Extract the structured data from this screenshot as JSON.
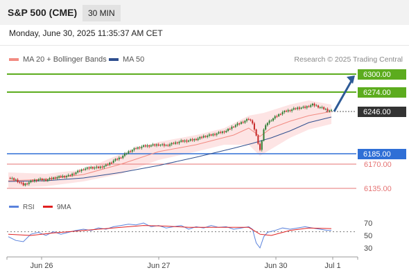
{
  "header": {
    "title": "S&P 500 (CME)",
    "timeframe": "30 MIN"
  },
  "date_label": "Monday, June 30, 2025 11:35:37 AM CET",
  "legend": {
    "items": [
      {
        "label": "MA 20 + Bollinger Bands",
        "color": "#f28b82"
      },
      {
        "label": "MA 50",
        "color": "#2f4f8f"
      }
    ],
    "credit": "Research © 2025 Trading Central"
  },
  "colors": {
    "resistance": "#5cac1e",
    "pivot": "#2f6fd6",
    "support": "#e57373",
    "current": "#333333",
    "candle_up": "#2e7d32",
    "candle_down": "#c62828",
    "arrow": "#2d5a96",
    "band_fill": "#fde4e4",
    "rsi_line": "#5a82dc",
    "rsi_ma": "#e02020"
  },
  "chart_data": [
    {
      "type": "candlestick",
      "title": "S&P 500 (CME)",
      "timeframe": "30 MIN",
      "x_tick_labels": [
        "Jun 26",
        "Jun 27",
        "Jun 30",
        "Jul 1"
      ],
      "ylim": [
        6120,
        6310
      ],
      "levels": [
        {
          "value": 6300.0,
          "label": "6300.00",
          "kind": "resistance"
        },
        {
          "value": 6274.0,
          "label": "6274.00",
          "kind": "resistance"
        },
        {
          "value": 6246.0,
          "label": "6246.00",
          "kind": "current"
        },
        {
          "value": 6185.0,
          "label": "6185.00",
          "kind": "pivot"
        },
        {
          "value": 6170.0,
          "label": "6170.00",
          "kind": "support"
        },
        {
          "value": 6135.0,
          "label": "6135.00",
          "kind": "support"
        }
      ],
      "forecast_arrow": {
        "from": 6246,
        "to": 6298
      },
      "price_path": [
        [
          0,
          6150
        ],
        [
          4,
          6147
        ],
        [
          8,
          6140
        ],
        [
          12,
          6145
        ],
        [
          16,
          6148
        ],
        [
          20,
          6147
        ],
        [
          24,
          6150
        ],
        [
          28,
          6152
        ],
        [
          32,
          6153
        ],
        [
          36,
          6158
        ],
        [
          40,
          6163
        ],
        [
          44,
          6165
        ],
        [
          48,
          6165
        ],
        [
          52,
          6168
        ],
        [
          56,
          6175
        ],
        [
          60,
          6180
        ],
        [
          64,
          6188
        ],
        [
          68,
          6193
        ],
        [
          72,
          6196
        ],
        [
          76,
          6197
        ],
        [
          80,
          6198
        ],
        [
          84,
          6197
        ],
        [
          88,
          6200
        ],
        [
          92,
          6203
        ],
        [
          96,
          6204
        ],
        [
          100,
          6206
        ],
        [
          104,
          6210
        ],
        [
          108,
          6212
        ],
        [
          112,
          6215
        ],
        [
          116,
          6218
        ],
        [
          120,
          6225
        ],
        [
          124,
          6230
        ],
        [
          128,
          6235
        ],
        [
          130,
          6230
        ],
        [
          132,
          6210
        ],
        [
          134,
          6190
        ],
        [
          136,
          6220
        ],
        [
          138,
          6230
        ],
        [
          142,
          6238
        ],
        [
          146,
          6245
        ],
        [
          150,
          6248
        ],
        [
          154,
          6251
        ],
        [
          158,
          6252
        ],
        [
          162,
          6256
        ],
        [
          166,
          6252
        ],
        [
          170,
          6248
        ],
        [
          172,
          6247
        ]
      ],
      "ma20": [
        [
          0,
          6146
        ],
        [
          20,
          6148
        ],
        [
          40,
          6155
        ],
        [
          60,
          6170
        ],
        [
          80,
          6188
        ],
        [
          100,
          6198
        ],
        [
          120,
          6212
        ],
        [
          128,
          6222
        ],
        [
          134,
          6210
        ],
        [
          140,
          6222
        ],
        [
          150,
          6232
        ],
        [
          160,
          6240
        ],
        [
          172,
          6246
        ]
      ],
      "ma50": [
        [
          0,
          6145
        ],
        [
          20,
          6146
        ],
        [
          40,
          6150
        ],
        [
          60,
          6158
        ],
        [
          80,
          6168
        ],
        [
          100,
          6180
        ],
        [
          120,
          6193
        ],
        [
          130,
          6200
        ],
        [
          140,
          6208
        ],
        [
          150,
          6218
        ],
        [
          160,
          6230
        ],
        [
          172,
          6238
        ]
      ],
      "bb_upper": [
        [
          0,
          6158
        ],
        [
          20,
          6156
        ],
        [
          40,
          6162
        ],
        [
          60,
          6185
        ],
        [
          80,
          6202
        ],
        [
          100,
          6212
        ],
        [
          115,
          6222
        ],
        [
          128,
          6240
        ],
        [
          136,
          6244
        ],
        [
          150,
          6256
        ],
        [
          160,
          6262
        ],
        [
          172,
          6256
        ]
      ],
      "bb_lower": [
        [
          0,
          6136
        ],
        [
          20,
          6138
        ],
        [
          40,
          6145
        ],
        [
          60,
          6156
        ],
        [
          80,
          6176
        ],
        [
          100,
          6188
        ],
        [
          115,
          6198
        ],
        [
          128,
          6198
        ],
        [
          134,
          6182
        ],
        [
          150,
          6208
        ],
        [
          160,
          6220
        ],
        [
          172,
          6228
        ]
      ]
    },
    {
      "type": "line",
      "title": "",
      "legend": [
        "RSI",
        "9MA"
      ],
      "y_tick_labels": [
        "70",
        "50",
        "30"
      ],
      "ylim": [
        20,
        80
      ],
      "reference_line": 56,
      "rsi": [
        [
          0,
          48
        ],
        [
          4,
          42
        ],
        [
          8,
          40
        ],
        [
          12,
          52
        ],
        [
          16,
          55
        ],
        [
          20,
          50
        ],
        [
          24,
          56
        ],
        [
          28,
          52
        ],
        [
          32,
          55
        ],
        [
          36,
          58
        ],
        [
          40,
          60
        ],
        [
          44,
          58
        ],
        [
          48,
          62
        ],
        [
          52,
          60
        ],
        [
          56,
          64
        ],
        [
          60,
          66
        ],
        [
          64,
          68
        ],
        [
          68,
          67
        ],
        [
          72,
          70
        ],
        [
          76,
          64
        ],
        [
          80,
          66
        ],
        [
          84,
          62
        ],
        [
          88,
          64
        ],
        [
          92,
          66
        ],
        [
          96,
          60
        ],
        [
          100,
          64
        ],
        [
          104,
          62
        ],
        [
          108,
          66
        ],
        [
          112,
          63
        ],
        [
          116,
          64
        ],
        [
          120,
          60
        ],
        [
          124,
          62
        ],
        [
          128,
          64
        ],
        [
          130,
          60
        ],
        [
          132,
          38
        ],
        [
          134,
          30
        ],
        [
          136,
          48
        ],
        [
          138,
          55
        ],
        [
          142,
          58
        ],
        [
          146,
          62
        ],
        [
          150,
          60
        ],
        [
          154,
          62
        ],
        [
          158,
          64
        ],
        [
          162,
          62
        ],
        [
          166,
          60
        ],
        [
          170,
          58
        ],
        [
          172,
          58
        ]
      ],
      "ma9": [
        [
          0,
          52
        ],
        [
          12,
          50
        ],
        [
          24,
          54
        ],
        [
          36,
          57
        ],
        [
          48,
          60
        ],
        [
          60,
          63
        ],
        [
          72,
          66
        ],
        [
          84,
          65
        ],
        [
          96,
          63
        ],
        [
          108,
          63
        ],
        [
          120,
          63
        ],
        [
          128,
          63
        ],
        [
          134,
          52
        ],
        [
          140,
          50
        ],
        [
          150,
          58
        ],
        [
          160,
          62
        ],
        [
          172,
          61
        ]
      ]
    }
  ]
}
